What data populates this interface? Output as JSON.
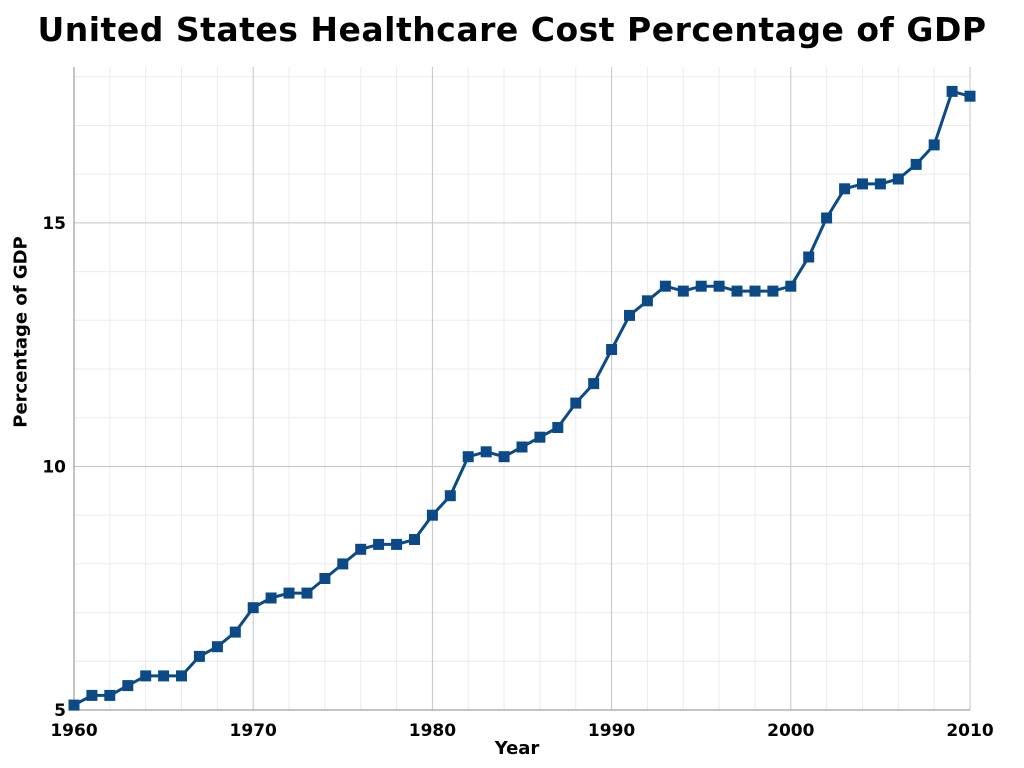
{
  "chart_data": {
    "type": "line",
    "title": "United States Healthcare Cost Percentage of GDP",
    "xlabel": "Year",
    "ylabel": "Percentage of GDP",
    "xlim": [
      1960,
      2010
    ],
    "ylim": [
      5,
      18.2
    ],
    "x_ticks": [
      1960,
      1970,
      1980,
      1990,
      2000,
      2010
    ],
    "x_tick_labels": [
      "1960",
      "1970",
      "1980",
      "1990",
      "2000",
      "2010"
    ],
    "y_ticks": [
      5,
      10,
      15
    ],
    "y_tick_labels": [
      "5",
      "10",
      "15"
    ],
    "grid": true,
    "legend": "none",
    "series": [
      {
        "color": "#0b4a87",
        "marker": "square",
        "x": [
          1960,
          1961,
          1962,
          1963,
          1964,
          1965,
          1966,
          1967,
          1968,
          1969,
          1970,
          1971,
          1972,
          1973,
          1974,
          1975,
          1976,
          1977,
          1978,
          1979,
          1980,
          1981,
          1982,
          1983,
          1984,
          1985,
          1986,
          1987,
          1988,
          1989,
          1990,
          1991,
          1992,
          1993,
          1994,
          1995,
          1996,
          1997,
          1998,
          1999,
          2000,
          2001,
          2002,
          2003,
          2004,
          2005,
          2006,
          2007,
          2008,
          2009,
          2010
        ],
        "values": [
          5.1,
          5.3,
          5.3,
          5.5,
          5.7,
          5.7,
          5.7,
          6.1,
          6.3,
          6.6,
          7.1,
          7.3,
          7.4,
          7.4,
          7.7,
          8.0,
          8.3,
          8.4,
          8.4,
          8.5,
          9.0,
          9.4,
          10.2,
          10.3,
          10.2,
          10.4,
          10.6,
          10.8,
          11.3,
          11.7,
          12.4,
          13.1,
          13.4,
          13.7,
          13.6,
          13.7,
          13.7,
          13.6,
          13.6,
          13.6,
          13.7,
          14.3,
          15.1,
          15.7,
          15.8,
          15.8,
          15.9,
          16.2,
          16.6,
          17.7,
          17.6
        ]
      }
    ]
  }
}
